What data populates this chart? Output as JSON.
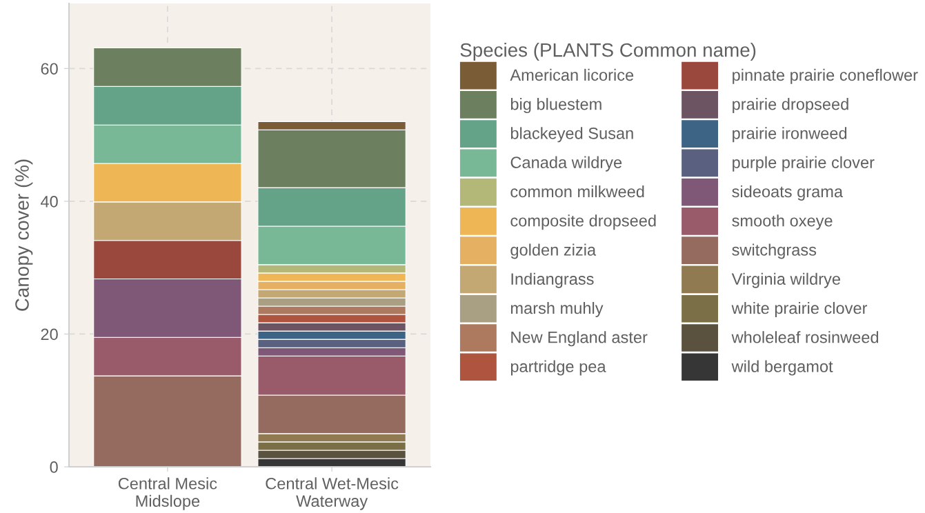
{
  "chart_data": {
    "type": "bar",
    "stacked": true,
    "ylabel": "Canopy cover (%)",
    "legend_title": "Species (PLANTS Common name)",
    "categories": [
      "Central Mesic\nMidslope",
      "Central Wet-Mesic\nWaterway"
    ],
    "ylim": [
      0,
      69.8
    ],
    "yticks": [
      0,
      20,
      40,
      60
    ],
    "grid": true,
    "legend": "right",
    "series": [
      {
        "name": "wild bergamot",
        "color": "#373636",
        "values": [
          null,
          1.25
        ]
      },
      {
        "name": "wholeleaf rosinweed",
        "color": "#5a513e",
        "values": [
          null,
          1.25
        ]
      },
      {
        "name": "white prairie clover",
        "color": "#7a6f47",
        "values": [
          null,
          1.25
        ]
      },
      {
        "name": "Virginia wildrye",
        "color": "#8f7a52",
        "values": [
          null,
          1.25
        ]
      },
      {
        "name": "switchgrass",
        "color": "#956b5f",
        "values": [
          13.7,
          5.8
        ]
      },
      {
        "name": "smooth oxeye",
        "color": "#995a6a",
        "values": [
          5.8,
          5.9
        ]
      },
      {
        "name": "sideoats grama",
        "color": "#7e5876",
        "values": [
          8.8,
          1.25
        ]
      },
      {
        "name": "purple prairie clover",
        "color": "#5a6080",
        "values": [
          null,
          1.25
        ]
      },
      {
        "name": "prairie ironweed",
        "color": "#3d6485",
        "values": [
          null,
          1.25
        ]
      },
      {
        "name": "prairie dropseed",
        "color": "#6c5462",
        "values": [
          null,
          1.25
        ]
      },
      {
        "name": "pinnate prairie coneflower",
        "color": "#9a473e",
        "values": [
          5.8,
          null
        ]
      },
      {
        "name": "partridge pea",
        "color": "#af553f",
        "values": [
          null,
          1.25
        ]
      },
      {
        "name": "New England aster",
        "color": "#ad7a60",
        "values": [
          null,
          1.25
        ]
      },
      {
        "name": "marsh muhly",
        "color": "#a99f82",
        "values": [
          null,
          1.25
        ]
      },
      {
        "name": "Indiangrass",
        "color": "#c4a873",
        "values": [
          5.8,
          1.25
        ]
      },
      {
        "name": "golden zizia",
        "color": "#e5b061",
        "values": [
          null,
          1.25
        ]
      },
      {
        "name": "composite dropseed",
        "color": "#efb655",
        "values": [
          5.8,
          1.25
        ]
      },
      {
        "name": "common milkweed",
        "color": "#b3b878",
        "values": [
          null,
          1.25
        ]
      },
      {
        "name": "Canada wildrye",
        "color": "#79b896",
        "values": [
          5.8,
          5.8
        ]
      },
      {
        "name": "blackeyed Susan",
        "color": "#64a388",
        "values": [
          5.8,
          5.8
        ]
      },
      {
        "name": "big bluestem",
        "color": "#6c7f5e",
        "values": [
          5.8,
          8.7
        ]
      },
      {
        "name": "American licorice",
        "color": "#7a5c36",
        "values": [
          null,
          1.25
        ]
      }
    ]
  }
}
